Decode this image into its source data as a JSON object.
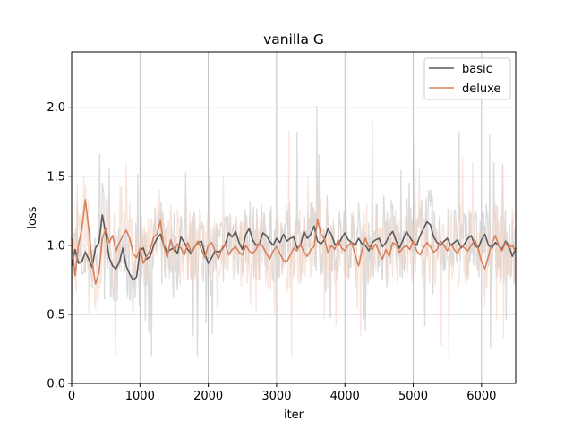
{
  "chart_data": {
    "type": "line",
    "title": "vanilla G",
    "xlabel": "iter",
    "ylabel": "loss",
    "xlim": [
      0,
      6500
    ],
    "ylim": [
      0,
      2.4
    ],
    "xticks": [
      0,
      1000,
      2000,
      3000,
      4000,
      5000,
      6000
    ],
    "xtick_labels": [
      "0",
      "1000",
      "2000",
      "3000",
      "4000",
      "5000",
      "6000"
    ],
    "yticks": [
      0.0,
      0.5,
      1.0,
      1.5,
      2.0
    ],
    "ytick_labels": [
      "0.0",
      "0.5",
      "1.0",
      "1.5",
      "2.0"
    ],
    "grid": true,
    "legend_position": "top-right",
    "series": [
      {
        "name": "basic",
        "color": "#595959",
        "raw_color": "#c7c7c7",
        "x": [
          0,
          50,
          100,
          150,
          200,
          250,
          300,
          350,
          400,
          450,
          500,
          550,
          600,
          650,
          700,
          750,
          800,
          850,
          900,
          950,
          1000,
          1050,
          1100,
          1150,
          1200,
          1250,
          1300,
          1350,
          1400,
          1450,
          1500,
          1550,
          1600,
          1650,
          1700,
          1750,
          1800,
          1850,
          1900,
          1950,
          2000,
          2050,
          2100,
          2150,
          2200,
          2250,
          2300,
          2350,
          2400,
          2450,
          2500,
          2550,
          2600,
          2650,
          2700,
          2750,
          2800,
          2850,
          2900,
          2950,
          3000,
          3050,
          3100,
          3150,
          3200,
          3250,
          3300,
          3350,
          3400,
          3450,
          3500,
          3550,
          3600,
          3650,
          3700,
          3750,
          3800,
          3850,
          3900,
          3950,
          4000,
          4050,
          4100,
          4150,
          4200,
          4250,
          4300,
          4350,
          4400,
          4450,
          4500,
          4550,
          4600,
          4650,
          4700,
          4750,
          4800,
          4850,
          4900,
          4950,
          5000,
          5050,
          5100,
          5150,
          5200,
          5250,
          5300,
          5350,
          5400,
          5450,
          5500,
          5550,
          5600,
          5650,
          5700,
          5750,
          5800,
          5850,
          5900,
          5950,
          6000,
          6050,
          6100,
          6150,
          6200,
          6250,
          6300,
          6350,
          6400,
          6450,
          6500
        ],
        "values": [
          0.85,
          0.97,
          0.87,
          0.88,
          0.95,
          0.9,
          0.84,
          0.98,
          1.02,
          1.22,
          1.08,
          0.91,
          0.85,
          0.83,
          0.88,
          0.98,
          0.85,
          0.79,
          0.75,
          0.77,
          0.96,
          0.98,
          0.9,
          0.92,
          1.0,
          1.05,
          1.08,
          1.0,
          0.95,
          0.97,
          0.98,
          0.94,
          1.06,
          1.02,
          0.97,
          0.94,
          0.99,
          1.02,
          1.03,
          0.94,
          0.87,
          0.91,
          0.96,
          0.95,
          0.97,
          1.01,
          1.09,
          1.06,
          1.1,
          1.02,
          0.97,
          1.08,
          1.12,
          1.04,
          1.0,
          1.01,
          1.09,
          1.07,
          1.03,
          1.0,
          1.05,
          1.02,
          1.08,
          1.03,
          1.05,
          1.06,
          0.98,
          1.0,
          1.1,
          1.05,
          1.08,
          1.14,
          1.03,
          1.01,
          1.04,
          1.12,
          1.08,
          1.01,
          1.0,
          1.05,
          1.09,
          1.04,
          1.02,
          1.0,
          1.05,
          1.01,
          1.0,
          0.96,
          1.02,
          1.04,
          1.05,
          0.99,
          1.02,
          1.07,
          1.1,
          1.03,
          0.98,
          1.04,
          1.1,
          1.06,
          1.02,
          1.0,
          1.07,
          1.12,
          1.17,
          1.15,
          1.06,
          1.02,
          1.0,
          1.03,
          1.05,
          1.0,
          1.02,
          1.04,
          0.98,
          1.01,
          1.05,
          1.07,
          1.0,
          0.98,
          1.04,
          1.08,
          1.0,
          0.98,
          1.02,
          1.0,
          0.97,
          1.03,
          1.0,
          0.92,
          0.98
        ]
      },
      {
        "name": "deluxe",
        "color": "#d5825f",
        "raw_color": "#f3d3c5",
        "x": [
          0,
          50,
          100,
          150,
          200,
          250,
          300,
          350,
          400,
          450,
          500,
          550,
          600,
          650,
          700,
          750,
          800,
          850,
          900,
          950,
          1000,
          1050,
          1100,
          1150,
          1200,
          1250,
          1300,
          1350,
          1400,
          1450,
          1500,
          1550,
          1600,
          1650,
          1700,
          1750,
          1800,
          1850,
          1900,
          1950,
          2000,
          2050,
          2100,
          2150,
          2200,
          2250,
          2300,
          2350,
          2400,
          2450,
          2500,
          2550,
          2600,
          2650,
          2700,
          2750,
          2800,
          2850,
          2900,
          2950,
          3000,
          3050,
          3100,
          3150,
          3200,
          3250,
          3300,
          3350,
          3400,
          3450,
          3500,
          3550,
          3600,
          3650,
          3700,
          3750,
          3800,
          3850,
          3900,
          3950,
          4000,
          4050,
          4100,
          4150,
          4200,
          4250,
          4300,
          4350,
          4400,
          4450,
          4500,
          4550,
          4600,
          4650,
          4700,
          4750,
          4800,
          4850,
          4900,
          4950,
          5000,
          5050,
          5100,
          5150,
          5200,
          5250,
          5300,
          5350,
          5400,
          5450,
          5500,
          5550,
          5600,
          5650,
          5700,
          5750,
          5800,
          5850,
          5900,
          5950,
          6000,
          6050,
          6100,
          6150,
          6200,
          6250,
          6300,
          6350,
          6400,
          6450,
          6500
        ],
        "values": [
          1.05,
          0.78,
          1.0,
          1.12,
          1.33,
          1.12,
          0.88,
          0.72,
          0.8,
          1.05,
          1.12,
          1.02,
          1.07,
          0.96,
          1.02,
          1.07,
          1.11,
          1.05,
          0.94,
          0.91,
          0.98,
          0.87,
          0.92,
          0.97,
          1.06,
          1.08,
          1.18,
          0.99,
          0.91,
          1.04,
          0.96,
          1.01,
          0.98,
          0.93,
          1.02,
          0.95,
          0.99,
          1.03,
          0.97,
          0.91,
          1.0,
          1.02,
          0.96,
          0.9,
          0.98,
          1.01,
          0.93,
          0.97,
          0.99,
          0.95,
          0.93,
          1.0,
          0.96,
          0.94,
          0.97,
          1.02,
          0.99,
          0.94,
          0.9,
          0.96,
          0.99,
          0.94,
          0.89,
          0.88,
          0.93,
          0.98,
          0.96,
          1.01,
          0.95,
          0.92,
          0.97,
          0.99,
          1.19,
          1.08,
          1.05,
          0.95,
          1.0,
          0.97,
          1.04,
          0.98,
          0.96,
          1.0,
          1.02,
          0.93,
          0.85,
          0.96,
          1.05,
          0.99,
          0.97,
          1.01,
          0.95,
          0.9,
          0.97,
          0.92,
          1.02,
          1.0,
          0.95,
          0.98,
          1.0,
          0.97,
          1.03,
          0.96,
          0.93,
          0.98,
          1.02,
          0.99,
          0.95,
          0.97,
          1.03,
          1.0,
          0.96,
          1.01,
          0.97,
          0.94,
          1.0,
          0.98,
          0.96,
          1.0,
          1.04,
          0.98,
          0.88,
          0.83,
          0.92,
          1.01,
          1.07,
          1.0,
          0.96,
          1.02,
          0.98,
          1.0,
          0.95
        ]
      }
    ]
  }
}
